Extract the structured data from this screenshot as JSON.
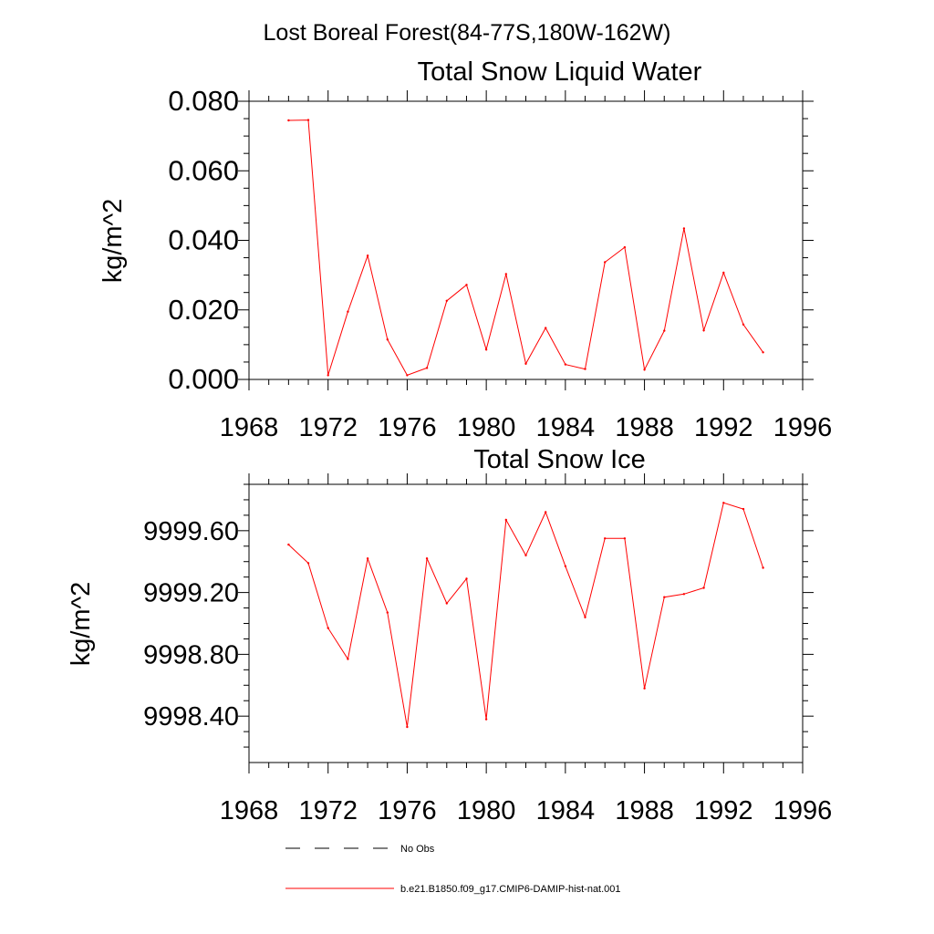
{
  "figure": {
    "title": "Lost Boreal Forest(84-77S,180W-162W)"
  },
  "legend": {
    "position": "bottom",
    "entries": [
      {
        "label": "No Obs",
        "style": "dashed",
        "color": "#000000"
      },
      {
        "label": "b.e21.B1850.f09_g17.CMIP6-DAMIP-hist-nat.001",
        "style": "solid",
        "color": "#ff0000"
      }
    ]
  },
  "chart_data": [
    {
      "type": "line",
      "title": "Total Snow Liquid Water",
      "xlabel": "",
      "ylabel": "kg/m^2",
      "xlim": [
        1968,
        1996
      ],
      "ylim": [
        0.0,
        0.08
      ],
      "xticks": [
        "1968",
        "1972",
        "1976",
        "1980",
        "1984",
        "1988",
        "1992",
        "1996"
      ],
      "yticks": [
        "0.000",
        "0.020",
        "0.040",
        "0.060",
        "0.080"
      ],
      "grid": false,
      "series": [
        {
          "name": "b.e21.B1850.f09_g17.CMIP6-DAMIP-hist-nat.001",
          "color": "#ff0000",
          "x": [
            1970,
            1971,
            1972,
            1973,
            1974,
            1975,
            1976,
            1977,
            1978,
            1979,
            1980,
            1981,
            1982,
            1983,
            1984,
            1985,
            1986,
            1987,
            1988,
            1989,
            1990,
            1991,
            1992,
            1993,
            1994
          ],
          "y": [
            0.0745,
            0.0746,
            0.0012,
            0.0195,
            0.0356,
            0.0115,
            0.0012,
            0.0033,
            0.0226,
            0.0272,
            0.0086,
            0.0303,
            0.0045,
            0.0148,
            0.0043,
            0.003,
            0.0337,
            0.038,
            0.0028,
            0.014,
            0.0434,
            0.0141,
            0.0307,
            0.0158,
            0.0078
          ]
        }
      ]
    },
    {
      "type": "line",
      "title": "Total Snow Ice",
      "xlabel": "",
      "ylabel": "kg/m^2",
      "xlim": [
        1968,
        1996
      ],
      "ylim": [
        9998.1,
        9999.9
      ],
      "xticks": [
        "1968",
        "1972",
        "1976",
        "1980",
        "1984",
        "1988",
        "1992",
        "1996"
      ],
      "yticks": [
        "9998.40",
        "9998.80",
        "9999.20",
        "9999.60"
      ],
      "grid": false,
      "series": [
        {
          "name": "b.e21.B1850.f09_g17.CMIP6-DAMIP-hist-nat.001",
          "color": "#ff0000",
          "x": [
            1970,
            1971,
            1972,
            1973,
            1974,
            1975,
            1976,
            1977,
            1978,
            1979,
            1980,
            1981,
            1982,
            1983,
            1984,
            1985,
            1986,
            1987,
            1988,
            1989,
            1990,
            1991,
            1992,
            1993,
            1994
          ],
          "y": [
            9999.51,
            9999.39,
            9998.97,
            9998.77,
            9999.42,
            9999.07,
            9998.33,
            9999.42,
            9999.13,
            9999.29,
            9998.38,
            9999.67,
            9999.44,
            9999.72,
            9999.37,
            9999.04,
            9999.55,
            9999.55,
            9998.58,
            9999.17,
            9999.19,
            9999.23,
            9999.78,
            9999.74,
            9999.36
          ]
        }
      ]
    }
  ]
}
